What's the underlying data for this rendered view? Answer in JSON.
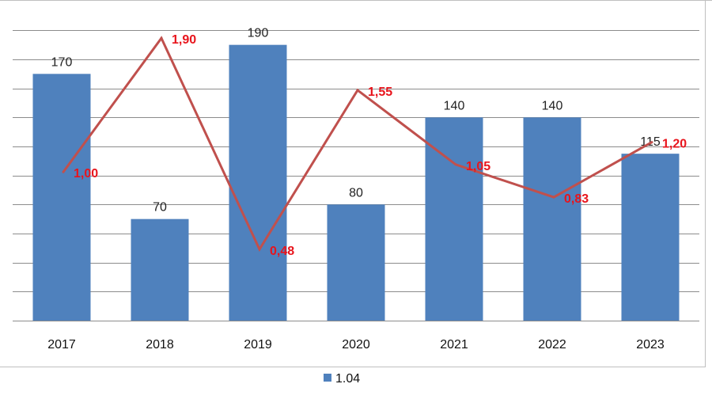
{
  "chart_data": {
    "type": "bar",
    "categories": [
      "2017",
      "2018",
      "2019",
      "2020",
      "2021",
      "2022",
      "2023"
    ],
    "series": [
      {
        "name": "1.04",
        "kind": "bar",
        "values": [
          170,
          70,
          190,
          80,
          140,
          140,
          115
        ],
        "labels": [
          "170",
          "70",
          "190",
          "80",
          "140",
          "140",
          "115"
        ],
        "color": "#4f81bd"
      },
      {
        "kind": "line",
        "values": [
          1.0,
          1.9,
          0.48,
          1.55,
          1.05,
          0.83,
          1.2
        ],
        "labels": [
          "1,00",
          "1,90",
          "0,48",
          "1,55",
          "1,05",
          "0,83",
          "1,20"
        ],
        "color": "#c0504d",
        "label_color": "#e8141c"
      }
    ],
    "ylim": [
      0,
      210
    ],
    "y2lim": [
      0,
      2.05
    ],
    "grid": true,
    "legend": "bottom",
    "legend_entries": [
      "1.04"
    ]
  }
}
